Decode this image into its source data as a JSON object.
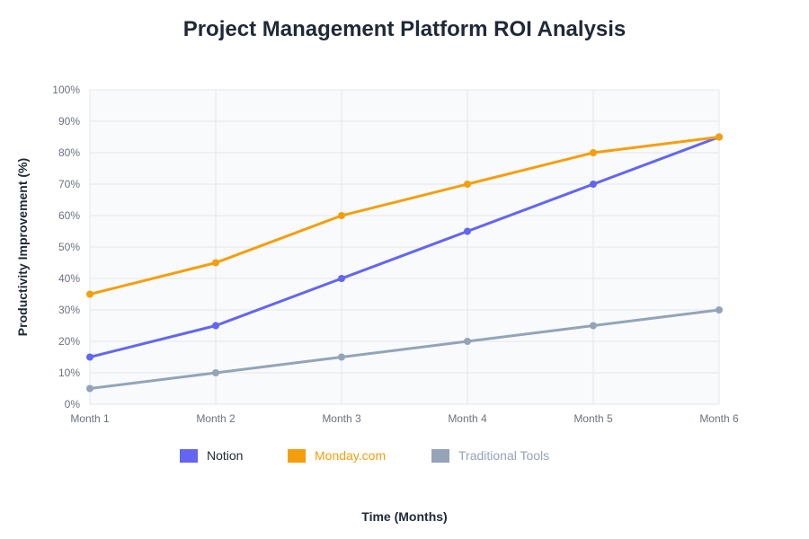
{
  "chart_data": {
    "type": "line",
    "title": "Project Management Platform ROI Analysis",
    "xlabel": "Time (Months)",
    "ylabel": "Productivity Improvement (%)",
    "categories": [
      "Month 1",
      "Month 2",
      "Month 3",
      "Month 4",
      "Month 5",
      "Month 6"
    ],
    "ylim": [
      0,
      100
    ],
    "yticks": [
      0,
      10,
      20,
      30,
      40,
      50,
      60,
      70,
      80,
      90,
      100
    ],
    "ytick_labels": [
      "0%",
      "10%",
      "20%",
      "30%",
      "40%",
      "50%",
      "60%",
      "70%",
      "80%",
      "90%",
      "100%"
    ],
    "grid": true,
    "legend_position": "bottom",
    "series": [
      {
        "name": "Notion",
        "color": "#6366f1",
        "values": [
          15,
          25,
          40,
          55,
          70,
          85
        ]
      },
      {
        "name": "Monday.com",
        "color": "#f59e0b",
        "values": [
          35,
          45,
          60,
          70,
          80,
          85
        ]
      },
      {
        "name": "Traditional Tools",
        "color": "#94a3b8",
        "values": [
          5,
          10,
          15,
          20,
          25,
          30
        ]
      }
    ]
  },
  "legend_text_colors": [
    "#1f2937",
    "#f59e0b",
    "#94a3b8"
  ]
}
